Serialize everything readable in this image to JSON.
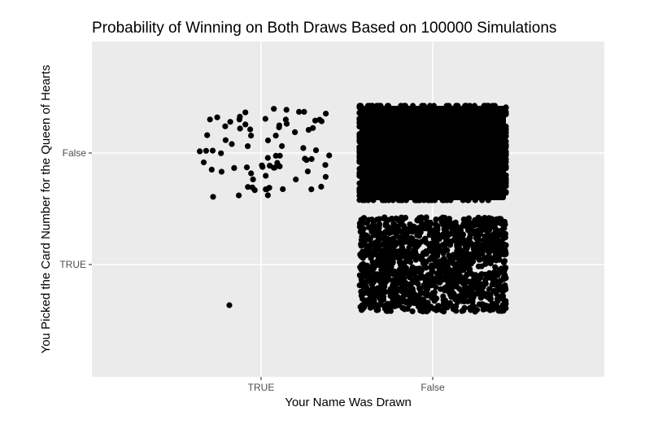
{
  "chart_data": {
    "type": "scatter",
    "title": "Probability of Winning on Both Draws Based on 100000 Simulations",
    "xlabel": "Your Name Was Drawn",
    "ylabel": "You Picked the Card Number for the Queen of Hearts",
    "x_categories": [
      "TRUE",
      "False"
    ],
    "y_categories": [
      "TRUE",
      "False"
    ],
    "jitter": "categorical jitter (width ≈ 0.4, height ≈ 0.4)",
    "grid": true,
    "point_color": "#000000",
    "panel_background": "#ebebeb",
    "groups": [
      {
        "x": "TRUE",
        "y": "TRUE",
        "count": 1
      },
      {
        "x": "TRUE",
        "y": "False",
        "count": 78
      },
      {
        "x": "False",
        "y": "TRUE",
        "count": 1900
      },
      {
        "x": "False",
        "y": "False",
        "count": 98021
      }
    ]
  }
}
